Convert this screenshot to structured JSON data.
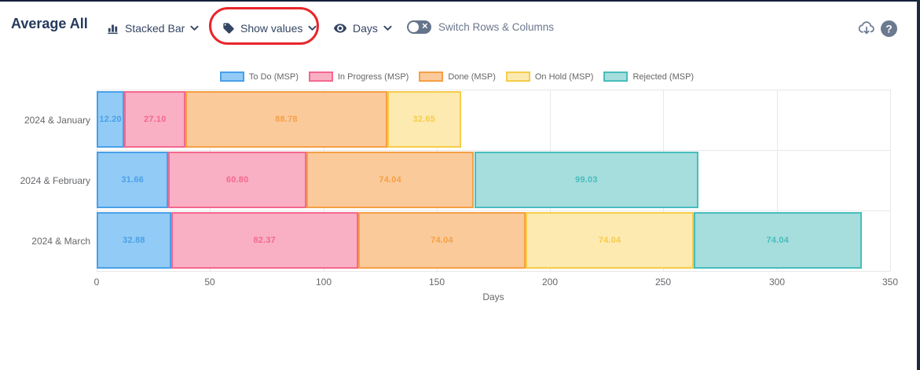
{
  "header": {
    "title": "Average All",
    "chart_type_label": "Stacked Bar",
    "show_values_label": "Show values",
    "unit_label": "Days",
    "switch_label": "Switch Rows & Columns",
    "icons": {
      "chart_type": "bar-chart-icon",
      "show_values": "tag-icon",
      "unit": "eye-icon",
      "export": "cloud-download-icon",
      "help": "question-mark-icon"
    },
    "toggle_state": "off"
  },
  "annotation": {
    "shape": "red-ellipse-highlight",
    "color": "#e8262b",
    "around": "Show values"
  },
  "chart_data": {
    "type": "bar",
    "orientation": "horizontal",
    "stacked": true,
    "title": "Average All",
    "categories": [
      "2024 & January",
      "2024 & February",
      "2024 & March"
    ],
    "series": [
      {
        "name": "To Do (MSP)",
        "fill": "#92cbf5",
        "border": "#49a0e9",
        "values": [
          12.2,
          31.66,
          32.88
        ]
      },
      {
        "name": "In Progress (MSP)",
        "fill": "#f9b0c4",
        "border": "#f4688f",
        "values": [
          27.1,
          60.8,
          82.37
        ]
      },
      {
        "name": "Done (MSP)",
        "fill": "#fbca9b",
        "border": "#f69f45",
        "values": [
          88.78,
          74.04,
          74.04
        ]
      },
      {
        "name": "On Hold (MSP)",
        "fill": "#fdeab0",
        "border": "#f6cc49",
        "values": [
          32.65,
          0,
          74.04
        ]
      },
      {
        "name": "Rejected (MSP)",
        "fill": "#a6dddd",
        "border": "#48bdbd",
        "values": [
          0,
          99.03,
          74.04
        ]
      }
    ],
    "xlabel": "Days",
    "ylabel": "",
    "x_ticks": [
      0,
      50,
      100,
      150,
      200,
      250,
      300,
      350
    ],
    "xlim": [
      0,
      350
    ],
    "grid": true,
    "legend_position": "top",
    "value_labels": "shown",
    "totals": [
      160.73,
      265.53,
      337.37
    ]
  }
}
